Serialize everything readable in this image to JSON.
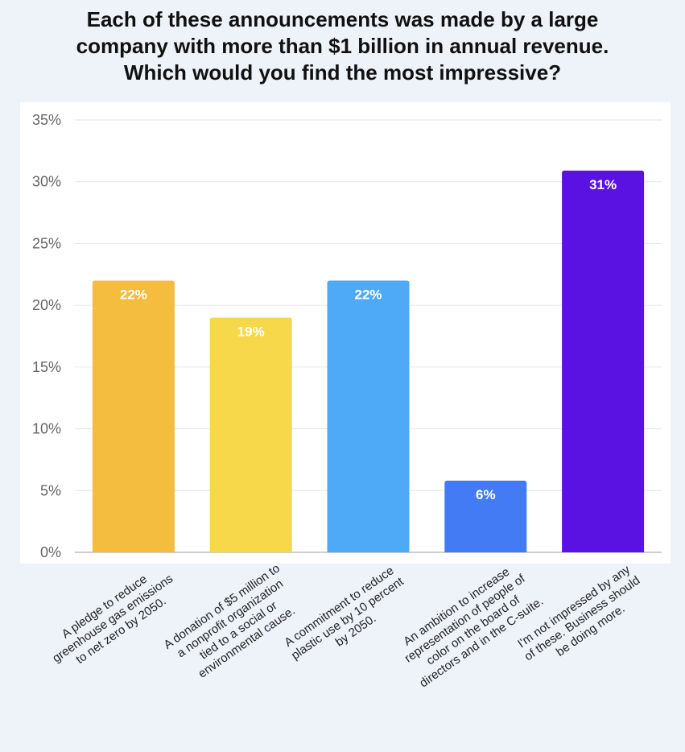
{
  "chart_data": {
    "type": "bar",
    "title": [
      "Each of these announcements was made by a large",
      "company with more than $1 billion in annual revenue.",
      "Which would you find the most impressive?"
    ],
    "categories": [
      [
        "A pledge to reduce",
        "greenhouse gas emissions",
        "to net zero by 2050."
      ],
      [
        "A donation of $5 million to",
        "a nonprofit organization",
        "tied to a social or",
        "environmental cause."
      ],
      [
        "A commitment to reduce",
        "plastic use by 10 percent",
        "by 2050."
      ],
      [
        "An ambition to increase",
        "representation of people of",
        "color on the board of",
        "directors and in the C-suite."
      ],
      [
        "I'm not impressed by any",
        "of these. Business should",
        "be doing more."
      ]
    ],
    "values": [
      22,
      19,
      22,
      6,
      31
    ],
    "bar_values": [
      22,
      19,
      22,
      5.8,
      30.9
    ],
    "data_labels": [
      "22%",
      "19%",
      "22%",
      "6%",
      "31%"
    ],
    "colors": [
      "#f4bd40",
      "#f6d84a",
      "#4eaaf6",
      "#437bf4",
      "#5a12e2"
    ],
    "ylim": [
      0,
      35
    ],
    "yticks": [
      0,
      5,
      10,
      15,
      20,
      25,
      30,
      35
    ],
    "ytick_labels": [
      "0%",
      "5%",
      "10%",
      "15%",
      "20%",
      "25%",
      "30%",
      "35%"
    ],
    "grid": true,
    "xlabel": "",
    "ylabel": ""
  }
}
